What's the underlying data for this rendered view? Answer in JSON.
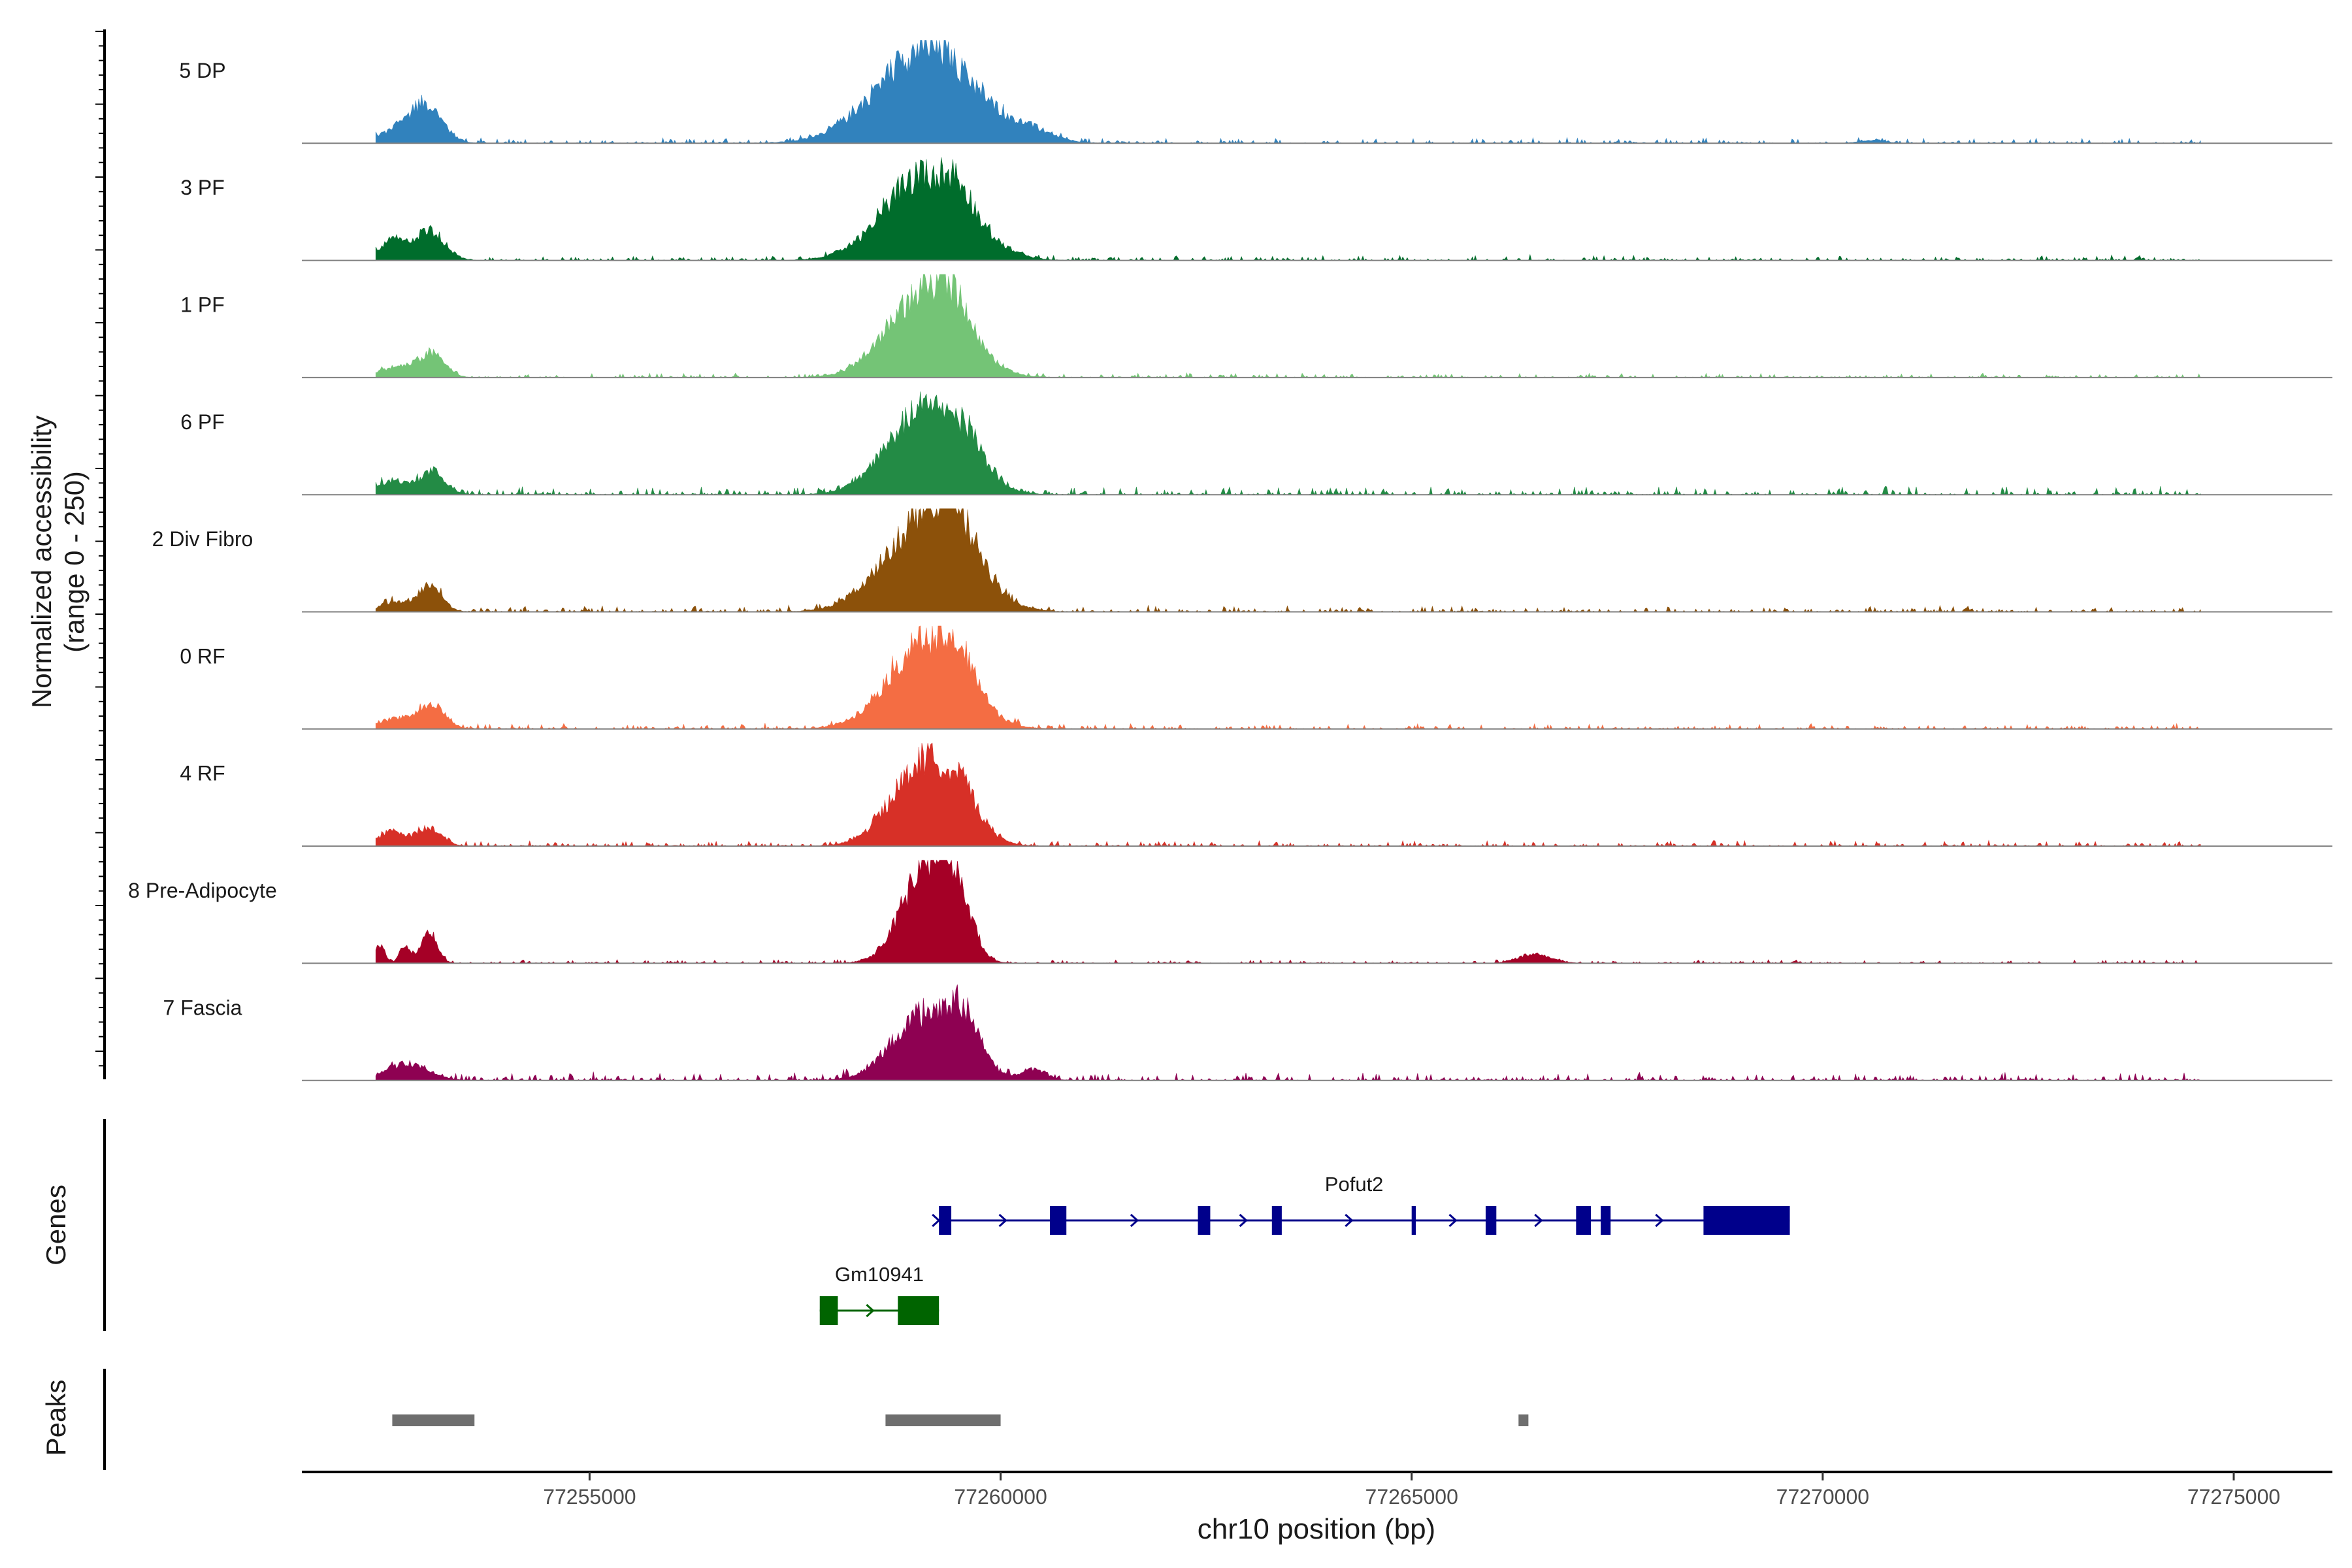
{
  "chart_data": {
    "type": "area",
    "title": "",
    "ylabel": "Normalized accessibility",
    "ylabel_range": "(range 0 - 250)",
    "xlabel": "chr10 position (bp)",
    "chromosome": "chr10",
    "xlim": [
      77251500,
      77276200
    ],
    "ylim": [
      0,
      250
    ],
    "x_ticks": [
      77255000,
      77260000,
      77265000,
      77270000,
      77275000
    ],
    "x_tick_labels": [
      "77255000",
      "77260000",
      "77265000",
      "77270000",
      "77275000"
    ],
    "tracks": [
      {
        "name": "5 DP",
        "color": "#3182bd",
        "peaks": [
          [
            77252600,
            25,
            250
          ],
          [
            77253000,
            100,
            200
          ],
          [
            77259100,
            250,
            600
          ],
          [
            77260400,
            22,
            250
          ],
          [
            77270600,
            8,
            150
          ]
        ],
        "noise": 6
      },
      {
        "name": "3 PF",
        "color": "#006d2c",
        "peaks": [
          [
            77252600,
            50,
            150
          ],
          [
            77253050,
            80,
            180
          ],
          [
            77259100,
            230,
            500
          ],
          [
            77259500,
            50,
            150
          ]
        ],
        "noise": 6
      },
      {
        "name": "1 PF",
        "color": "#74c476",
        "peaks": [
          [
            77252700,
            30,
            250
          ],
          [
            77253100,
            55,
            150
          ],
          [
            77259100,
            235,
            450
          ],
          [
            77259450,
            60,
            180
          ]
        ],
        "noise": 5
      },
      {
        "name": "6 PF",
        "color": "#238b45",
        "peaks": [
          [
            77252600,
            35,
            200
          ],
          [
            77253100,
            60,
            150
          ],
          [
            77259100,
            230,
            450
          ],
          [
            77259600,
            60,
            200
          ]
        ],
        "noise": 9
      },
      {
        "name": "2 Div Fibro",
        "color": "#8c510a",
        "peaks": [
          [
            77252600,
            25,
            150
          ],
          [
            77253050,
            70,
            150
          ],
          [
            77259100,
            240,
            500
          ],
          [
            77259450,
            110,
            250
          ]
        ],
        "noise": 7
      },
      {
        "name": "0 RF",
        "color": "#f46d43",
        "peaks": [
          [
            77252700,
            30,
            250
          ],
          [
            77253100,
            55,
            150
          ],
          [
            77259100,
            235,
            450
          ],
          [
            77259550,
            60,
            180
          ]
        ],
        "noise": 6
      },
      {
        "name": "4 RF",
        "color": "#d73027",
        "peaks": [
          [
            77252600,
            40,
            150
          ],
          [
            77253050,
            50,
            150
          ],
          [
            77259100,
            230,
            400
          ],
          [
            77259550,
            50,
            200
          ]
        ],
        "noise": 6
      },
      {
        "name": "8 Pre-Adipocyte",
        "color": "#a50026",
        "peaks": [
          [
            77252450,
            50,
            60
          ],
          [
            77252750,
            45,
            60
          ],
          [
            77253050,
            80,
            100
          ],
          [
            77259100,
            250,
            300
          ],
          [
            77259450,
            145,
            180
          ],
          [
            77266500,
            25,
            200
          ]
        ],
        "noise": 4
      },
      {
        "name": "7 Fascia",
        "color": "#8e0152",
        "peaks": [
          [
            77252800,
            45,
            250
          ],
          [
            77259100,
            170,
            400
          ],
          [
            77259550,
            110,
            200
          ],
          [
            77260400,
            30,
            150
          ]
        ],
        "noise": 9
      }
    ],
    "genes": [
      {
        "name": "Pofut2",
        "color": "#00008b",
        "strand": "+",
        "start": 77259250,
        "end": 77269600,
        "exons": [
          [
            77259250,
            77259400
          ],
          [
            77260600,
            77260800
          ],
          [
            77262400,
            77262550
          ],
          [
            77263300,
            77263420
          ],
          [
            77265000,
            77265050
          ],
          [
            77265900,
            77266030
          ],
          [
            77267000,
            77267180
          ],
          [
            77267300,
            77267420
          ],
          [
            77268550,
            77269600
          ]
        ]
      },
      {
        "name": "Gm10941",
        "color": "#006400",
        "strand": "+",
        "start": 77257800,
        "end": 77259250,
        "exons": [
          [
            77257800,
            77258020
          ],
          [
            77258750,
            77259250
          ]
        ]
      }
    ],
    "peaks_track": [
      [
        77252600,
        77253600
      ],
      [
        77258600,
        77260000
      ],
      [
        77266300,
        77266420
      ]
    ],
    "peaks_color": "#6e6e6e",
    "panel_labels": {
      "genes": "Genes",
      "peaks": "Peaks"
    }
  }
}
